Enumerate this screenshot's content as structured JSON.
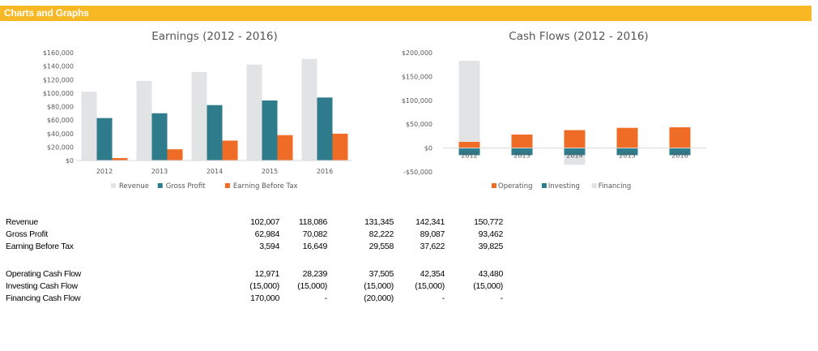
{
  "banner": {
    "title": "Charts and Graphs"
  },
  "colors": {
    "banner": "#f8b823",
    "revenue": "#e2e3e5",
    "gross_profit": "#2e7b8b",
    "ebt": "#ee6c26",
    "operating": "#ee6c26",
    "investing": "#2e7b8b",
    "financing": "#e2e3e5"
  },
  "chart_data": [
    {
      "type": "bar",
      "title": "Earnings (2012 - 2016)",
      "categories": [
        "2012",
        "2013",
        "2014",
        "2015",
        "2016"
      ],
      "series": [
        {
          "name": "Revenue",
          "values": [
            102007,
            118086,
            131345,
            142341,
            150772
          ]
        },
        {
          "name": "Gross Profit",
          "values": [
            62984,
            70082,
            82222,
            89087,
            93462
          ]
        },
        {
          "name": "Earning Before Tax",
          "values": [
            3594,
            16649,
            29558,
            37622,
            39825
          ]
        }
      ],
      "ylim": [
        0,
        160000
      ],
      "yticks": [
        0,
        20000,
        40000,
        60000,
        80000,
        100000,
        120000,
        140000,
        160000
      ],
      "ytick_labels": [
        "$0",
        "$20,000",
        "$40,000",
        "$60,000",
        "$80,000",
        "$100,000",
        "$120,000",
        "$140,000",
        "$160,000"
      ],
      "grid": false,
      "legend": "bottom"
    },
    {
      "type": "bar",
      "stacked": true,
      "title": "Cash Flows (2012 - 2016)",
      "categories": [
        "2012",
        "2013",
        "2014",
        "2015",
        "2016"
      ],
      "series": [
        {
          "name": "Operating",
          "values": [
            12971,
            28239,
            37505,
            42354,
            43480
          ]
        },
        {
          "name": "Investing",
          "values": [
            -15000,
            -15000,
            -15000,
            -15000,
            -15000
          ]
        },
        {
          "name": "Financing",
          "values": [
            170000,
            0,
            -20000,
            0,
            0
          ]
        }
      ],
      "ylim": [
        -50000,
        200000
      ],
      "yticks": [
        -50000,
        0,
        50000,
        100000,
        150000,
        200000
      ],
      "ytick_labels": [
        "-$50,000",
        "$0",
        "$50,000",
        "$100,000",
        "$150,000",
        "$200,000"
      ],
      "grid": false,
      "legend": "bottom"
    }
  ],
  "table": {
    "rows": [
      {
        "label": "Revenue",
        "values": [
          "102,007",
          "118,086",
          "131,345",
          "142,341",
          "150,772"
        ]
      },
      {
        "label": "Gross Profit",
        "values": [
          "62,984",
          "70,082",
          "82,222",
          "89,087",
          "93,462"
        ]
      },
      {
        "label": "Earning Before Tax",
        "values": [
          "3,594",
          "16,649",
          "29,558",
          "37,622",
          "39,825"
        ]
      },
      {
        "label": "Operating Cash Flow",
        "values": [
          "12,971",
          "28,239",
          "37,505",
          "42,354",
          "43,480"
        ]
      },
      {
        "label": "Investing Cash Flow",
        "values": [
          "(15,000)",
          "(15,000)",
          "(15,000)",
          "(15,000)",
          "(15,000)"
        ]
      },
      {
        "label": "Financing Cash Flow",
        "values": [
          "170,000",
          "-",
          "(20,000)",
          "-",
          "-"
        ]
      }
    ]
  }
}
